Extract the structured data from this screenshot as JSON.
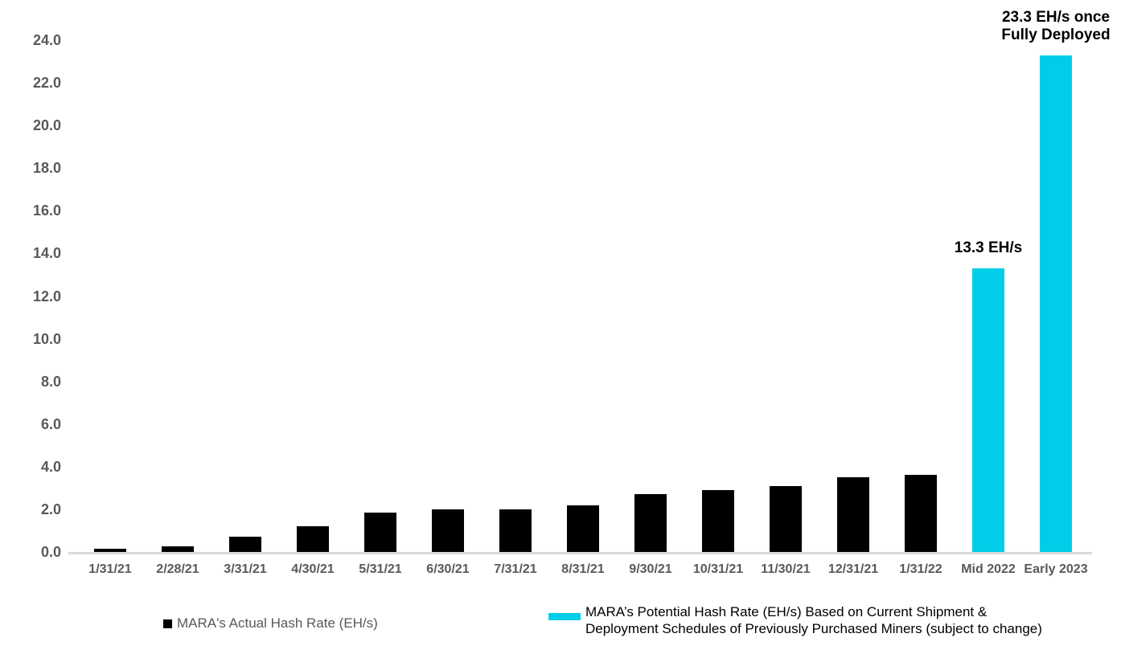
{
  "chart_data": {
    "type": "bar",
    "title": "",
    "xlabel": "",
    "ylabel": "",
    "categories": [
      "1/31/21",
      "2/28/21",
      "3/31/21",
      "4/30/21",
      "5/31/21",
      "6/30/21",
      "7/31/21",
      "8/31/21",
      "9/30/21",
      "10/31/21",
      "11/30/21",
      "12/31/21",
      "1/31/22",
      "Mid 2022",
      "Early 2023"
    ],
    "series": [
      {
        "name": "MARA's Actual Hash Rate (EH/s)",
        "color": "#000000",
        "values": [
          0.15,
          0.25,
          0.7,
          1.2,
          1.85,
          2.0,
          2.0,
          2.2,
          2.7,
          2.9,
          3.1,
          3.5,
          3.6,
          null,
          null
        ]
      },
      {
        "name": "MARA’s Potential Hash Rate (EH/s) Based on Current Shipment & Deployment Schedules of Previously Purchased Miners (subject to change)",
        "color": "#00CEE8",
        "values": [
          null,
          null,
          null,
          null,
          null,
          null,
          null,
          null,
          null,
          null,
          null,
          null,
          null,
          13.3,
          23.3
        ]
      }
    ],
    "ylim": [
      0,
      24
    ],
    "y_tick_step": 2,
    "y_tick_labels": [
      "0.0",
      "2.0",
      "4.0",
      "6.0",
      "8.0",
      "10.0",
      "12.0",
      "14.0",
      "16.0",
      "18.0",
      "20.0",
      "22.0",
      "24.0"
    ],
    "grid": false,
    "legend_position": "bottom",
    "annotations": [
      {
        "category": "Mid 2022",
        "lines": [
          "13.3 EH/s"
        ]
      },
      {
        "category": "Early 2023",
        "lines": [
          "23.3 EH/s once",
          "Fully Deployed"
        ]
      }
    ]
  },
  "legend": {
    "actual": {
      "label": "MARA's Actual Hash Rate (EH/s)",
      "swatch_color": "#000000"
    },
    "potential": {
      "line1": "MARA’s Potential Hash Rate (EH/s) Based on Current Shipment &",
      "line2": "Deployment Schedules of Previously Purchased Miners (subject to change)",
      "swatch_color": "#00CEE8"
    }
  },
  "colors": {
    "actual_bar": "#000000",
    "potential_bar": "#00CEE8",
    "axis_line": "#d9d9d9",
    "tick_text": "#595959",
    "annotation_text": "#000000"
  }
}
